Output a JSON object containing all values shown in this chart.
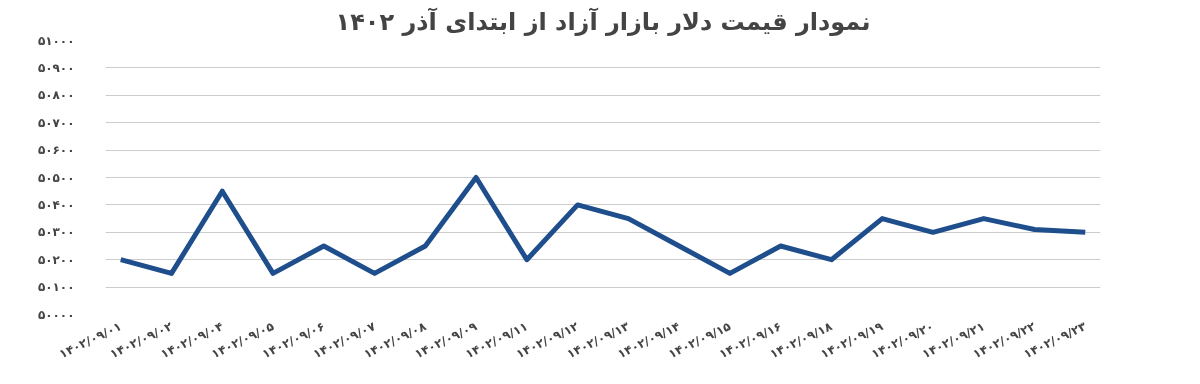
{
  "chart_data": {
    "type": "line",
    "title": "نمودار قیمت دلار بازار آزاد از ابتدای آذر ۱۴۰۲",
    "categories": [
      "۱۴۰۲/۰۹/۰۱",
      "۱۴۰۲/۰۹/۰۲",
      "۱۴۰۲/۰۹/۰۴",
      "۱۴۰۲/۰۹/۰۵",
      "۱۴۰۲/۰۹/۰۶",
      "۱۴۰۲/۰۹/۰۷",
      "۱۴۰۲/۰۹/۰۸",
      "۱۴۰۲/۰۹/۰۹",
      "۱۴۰۲/۰۹/۱۱",
      "۱۴۰۲/۰۹/۱۲",
      "۱۴۰۲/۰۹/۱۳",
      "۱۴۰۲/۰۹/۱۴",
      "۱۴۰۲/۰۹/۱۵",
      "۱۴۰۲/۰۹/۱۶",
      "۱۴۰۲/۰۹/۱۸",
      "۱۴۰۲/۰۹/۱۹",
      "۱۴۰۲/۰۹/۲۰",
      "۱۴۰۲/۰۹/۲۱",
      "۱۴۰۲/۰۹/۲۲",
      "۱۴۰۲/۰۹/۲۳"
    ],
    "series": [
      {
        "color": "#1f4e8c",
        "values": [
          50200,
          50150,
          50450,
          50150,
          50250,
          50150,
          50250,
          50500,
          50200,
          50400,
          50350,
          50250,
          50150,
          50250,
          50200,
          50350,
          50300,
          50350,
          50310,
          50300
        ]
      }
    ],
    "ylim": [
      50000,
      51000
    ],
    "yticks": [
      {
        "value": 50000,
        "label": "۵۰۰۰۰"
      },
      {
        "value": 50100,
        "label": "۵۰۱۰۰"
      },
      {
        "value": 50200,
        "label": "۵۰۲۰۰"
      },
      {
        "value": 50300,
        "label": "۵۰۳۰۰"
      },
      {
        "value": 50400,
        "label": "۵۰۴۰۰"
      },
      {
        "value": 50500,
        "label": "۵۰۵۰۰"
      },
      {
        "value": 50600,
        "label": "۵۰۶۰۰"
      },
      {
        "value": 50700,
        "label": "۵۰۷۰۰"
      },
      {
        "value": 50800,
        "label": "۵۰۸۰۰"
      },
      {
        "value": 50900,
        "label": "۵۰۹۰۰"
      },
      {
        "value": 51000,
        "label": "۵۱۰۰۰"
      }
    ],
    "grid": "y",
    "marker": "none",
    "line_style": "solid"
  }
}
